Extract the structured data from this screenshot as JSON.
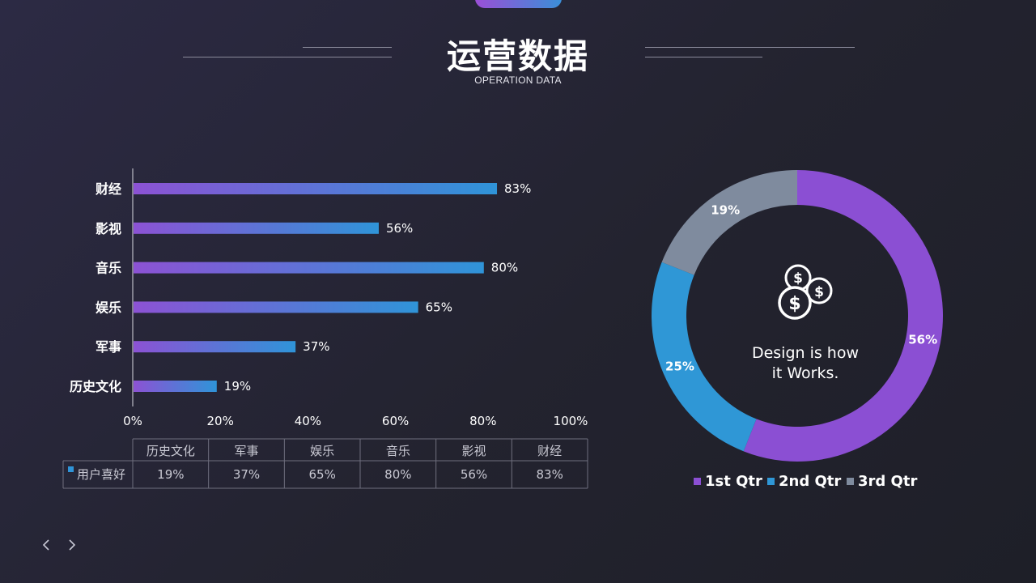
{
  "header": {
    "title": "运营数据",
    "subtitle": "OPERATION DATA"
  },
  "colors": {
    "purple": "#8b4fd3",
    "blue": "#2f97d6",
    "gray": "#7f8b9e",
    "bar_start": "#8c52d4",
    "bar_end": "#2f94d8"
  },
  "chart_data": [
    {
      "type": "bar",
      "orientation": "horizontal",
      "categories": [
        "财经",
        "影视",
        "音乐",
        "娱乐",
        "军事",
        "历史文化"
      ],
      "series": [
        {
          "name": "用户喜好",
          "values": [
            83,
            56,
            80,
            65,
            37,
            19
          ]
        }
      ],
      "data_labels": [
        "83%",
        "56%",
        "80%",
        "65%",
        "37%",
        "19%"
      ],
      "x_ticks": [
        "0%",
        "20%",
        "40%",
        "60%",
        "80%",
        "100%"
      ],
      "xlim": [
        0,
        100
      ],
      "grid": false,
      "data_table": {
        "headers": [
          "历史文化",
          "军事",
          "娱乐",
          "音乐",
          "影视",
          "财经"
        ],
        "row_label": "用户喜好",
        "values": [
          "19%",
          "37%",
          "65%",
          "80%",
          "56%",
          "83%"
        ]
      }
    },
    {
      "type": "pie",
      "variant": "donut",
      "categories": [
        "1st Qtr",
        "2nd Qtr",
        "3rd Qtr"
      ],
      "values": [
        56,
        25,
        19
      ],
      "data_labels": [
        "56%",
        "25%",
        "19%"
      ],
      "center_text": [
        "Design is how",
        "it Works."
      ],
      "center_icon": "dollar-coins-icon",
      "legend_position": "bottom"
    }
  ],
  "nav": {
    "prev_icon": "chevron-left-icon",
    "next_icon": "chevron-right-icon"
  }
}
